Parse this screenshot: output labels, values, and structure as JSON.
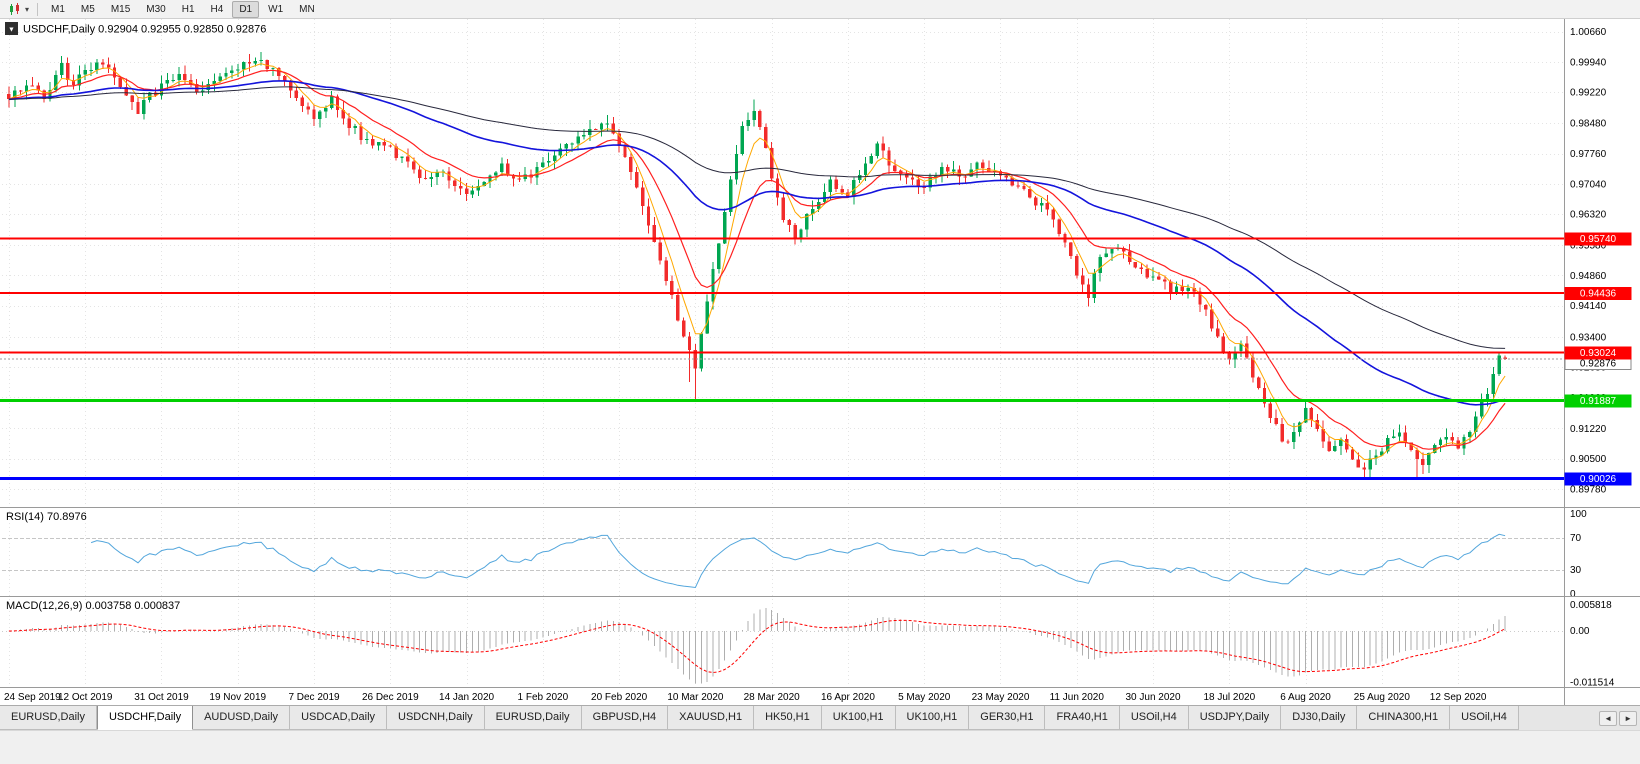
{
  "toolbar": {
    "timeframes": [
      {
        "label": "M1",
        "active": false
      },
      {
        "label": "M5",
        "active": false
      },
      {
        "label": "M15",
        "active": false
      },
      {
        "label": "M30",
        "active": false
      },
      {
        "label": "H1",
        "active": false
      },
      {
        "label": "H4",
        "active": false
      },
      {
        "label": "D1",
        "active": true
      },
      {
        "label": "W1",
        "active": false
      },
      {
        "label": "MN",
        "active": false
      }
    ]
  },
  "chart_header": {
    "symbol": "USDCHF,Daily",
    "open": "0.92904",
    "high": "0.92955",
    "low": "0.92850",
    "close": "0.92876"
  },
  "chart_data": {
    "type": "candlestick",
    "symbol": "USDCHF",
    "timeframe": "Daily",
    "current_ohlc": {
      "open": 0.92904,
      "high": 0.92955,
      "low": 0.9285,
      "close": 0.92876
    },
    "bars": 256,
    "x_tick_step": 13,
    "x_tick_labels": [
      "24 Sep 2019",
      "12 Oct 2019",
      "31 Oct 2019",
      "19 Nov 2019",
      "7 Dec 2019",
      "26 Dec 2019",
      "14 Jan 2020",
      "1 Feb 2020",
      "20 Feb 2020",
      "10 Mar 2020",
      "28 Mar 2020",
      "16 Apr 2020",
      "5 May 2020",
      "23 May 2020",
      "11 Jun 2020",
      "30 Jun 2020",
      "18 Jul 2020",
      "6 Aug 2020",
      "25 Aug 2020",
      "12 Sep 2020"
    ],
    "y_axis": {
      "min": 0.8935,
      "max": 1.0096,
      "tick_labels": [
        "1.00660",
        "0.99940",
        "0.99220",
        "0.98480",
        "0.97760",
        "0.97040",
        "0.96320",
        "0.95580",
        "0.94860",
        "0.94140",
        "0.93400",
        "0.92680",
        "0.91960",
        "0.91220",
        "0.90500",
        "0.89780"
      ]
    },
    "horizontal_lines": [
      {
        "price": 0.9574,
        "label": "0.95740",
        "color": "#FF0000",
        "width": 2,
        "kind": "resistance"
      },
      {
        "price": 0.94436,
        "label": "0.94436",
        "color": "#FF0000",
        "width": 2,
        "kind": "resistance"
      },
      {
        "price": 0.93024,
        "label": "0.93024",
        "color": "#FF0000",
        "width": 2,
        "kind": "resistance"
      },
      {
        "price": 0.91887,
        "label": "0.91887",
        "color": "#00D000",
        "width": 3,
        "kind": "support"
      },
      {
        "price": 0.90026,
        "label": "0.90026",
        "color": "#0000FF",
        "width": 3,
        "kind": "support"
      }
    ],
    "current_price_line": {
      "price": 0.92876,
      "label": "0.92876"
    },
    "candle_colors": {
      "up": "#00A651",
      "down": "#F22B2B"
    },
    "series": {
      "seed": 97,
      "noise": 0.0011,
      "wick": 0.0021,
      "close_anchors": [
        [
          0,
          0.9905
        ],
        [
          3,
          0.9945
        ],
        [
          6,
          0.9912
        ],
        [
          9,
          0.9982
        ],
        [
          11,
          0.9938
        ],
        [
          13,
          0.9968
        ],
        [
          16,
          0.999
        ],
        [
          19,
          0.9932
        ],
        [
          22,
          0.9878
        ],
        [
          24,
          0.9916
        ],
        [
          26,
          0.9932
        ],
        [
          29,
          0.9966
        ],
        [
          32,
          0.9926
        ],
        [
          36,
          0.996
        ],
        [
          40,
          0.9988
        ],
        [
          43,
          1.0
        ],
        [
          46,
          0.9956
        ],
        [
          49,
          0.9906
        ],
        [
          52,
          0.9868
        ],
        [
          55,
          0.9904
        ],
        [
          58,
          0.9846
        ],
        [
          61,
          0.9806
        ],
        [
          65,
          0.9788
        ],
        [
          68,
          0.9748
        ],
        [
          71,
          0.9706
        ],
        [
          74,
          0.973
        ],
        [
          78,
          0.9678
        ],
        [
          81,
          0.971
        ],
        [
          84,
          0.9742
        ],
        [
          87,
          0.9706
        ],
        [
          91,
          0.9748
        ],
        [
          95,
          0.9792
        ],
        [
          99,
          0.9838
        ],
        [
          102,
          0.9856
        ],
        [
          104,
          0.9798
        ],
        [
          107,
          0.9698
        ],
        [
          110,
          0.9565
        ],
        [
          112,
          0.9472
        ],
        [
          114,
          0.9385
        ],
        [
          116,
          0.93
        ],
        [
          117,
          0.9262
        ],
        [
          118,
          0.9345
        ],
        [
          119,
          0.9428
        ],
        [
          121,
          0.9565
        ],
        [
          123,
          0.9705
        ],
        [
          125,
          0.9845
        ],
        [
          127,
          0.988
        ],
        [
          129,
          0.978
        ],
        [
          130,
          0.9706
        ],
        [
          132,
          0.9625
        ],
        [
          134,
          0.9565
        ],
        [
          137,
          0.9652
        ],
        [
          140,
          0.9705
        ],
        [
          143,
          0.9682
        ],
        [
          146,
          0.9748
        ],
        [
          148,
          0.979
        ],
        [
          152,
          0.9722
        ],
        [
          156,
          0.9702
        ],
        [
          159,
          0.9748
        ],
        [
          162,
          0.9722
        ],
        [
          165,
          0.9746
        ],
        [
          169,
          0.9722
        ],
        [
          172,
          0.9702
        ],
        [
          175,
          0.9662
        ],
        [
          178,
          0.9622
        ],
        [
          180,
          0.9562
        ],
        [
          182,
          0.9482
        ],
        [
          184,
          0.9442
        ],
        [
          186,
          0.9522
        ],
        [
          189,
          0.9552
        ],
        [
          192,
          0.9502
        ],
        [
          195,
          0.9482
        ],
        [
          198,
          0.9452
        ],
        [
          201,
          0.9462
        ],
        [
          204,
          0.9402
        ],
        [
          206,
          0.9332
        ],
        [
          208,
          0.9282
        ],
        [
          210,
          0.9322
        ],
        [
          212,
          0.9252
        ],
        [
          214,
          0.9182
        ],
        [
          216,
          0.9122
        ],
        [
          218,
          0.9082
        ],
        [
          220,
          0.9132
        ],
        [
          221,
          0.916
        ],
        [
          223,
          0.9112
        ],
        [
          225,
          0.9072
        ],
        [
          227,
          0.9102
        ],
        [
          229,
          0.9052
        ],
        [
          231,
          0.9022
        ],
        [
          233,
          0.9062
        ],
        [
          235,
          0.9092
        ],
        [
          237,
          0.9106
        ],
        [
          239,
          0.9062
        ],
        [
          241,
          0.9032
        ],
        [
          243,
          0.9082
        ],
        [
          245,
          0.9112
        ],
        [
          247,
          0.9082
        ],
        [
          249,
          0.9122
        ],
        [
          251,
          0.9182
        ],
        [
          253,
          0.9242
        ],
        [
          255,
          0.9288
        ]
      ],
      "overrides": {
        "9": {
          "h": 1.0008
        },
        "43": {
          "h": 1.0018
        },
        "78": {
          "l": 0.9663
        },
        "102": {
          "h": 0.9868
        },
        "116": {
          "l": 0.9232
        },
        "117": {
          "l": 0.9185
        },
        "127": {
          "h": 0.9905
        },
        "184": {
          "l": 0.9412
        },
        "221": {
          "h": 0.9189
        },
        "231": {
          "l": 0.8999
        },
        "240": {
          "l": 0.9004
        },
        "254": {
          "h": 0.93024,
          "c": 0.9295
        },
        "255": {
          "o": 0.92904,
          "h": 0.92955,
          "l": 0.9285,
          "c": 0.92876
        }
      }
    },
    "moving_averages": [
      {
        "period": 5,
        "color": "#FFA800",
        "width": 1
      },
      {
        "period": 13,
        "color": "#FF2020",
        "width": 1.2
      },
      {
        "period": 50,
        "color": "#1414DC",
        "width": 1.6
      },
      {
        "period": 100,
        "color": "#28283C",
        "width": 1
      }
    ],
    "indicators": {
      "rsi": {
        "title": "RSI(14) 70.8976",
        "period": 14,
        "current": 70.8976,
        "color": "#53A6DC",
        "levels": [
          {
            "value": 100,
            "label": "100"
          },
          {
            "value": 70,
            "label": "70"
          },
          {
            "value": 30,
            "label": "30"
          },
          {
            "value": 0,
            "label": "0"
          }
        ]
      },
      "macd": {
        "title": "MACD(12,26,9) 0.003758 0.000837",
        "fast": 12,
        "slow": 26,
        "signal_period": 9,
        "current_macd": 0.003758,
        "current_signal": 0.000837,
        "hist_color": "#AFAFAF",
        "signal_color": "#FF0000",
        "axis_labels": [
          {
            "value": 0.005818,
            "label": "0.005818"
          },
          {
            "value": 0,
            "label": "0.00"
          },
          {
            "value": -0.011514,
            "label": "-0.011514"
          }
        ]
      }
    },
    "grid_color": "#E4E4E4",
    "separator_color": "#9A9A9A"
  },
  "tabs": {
    "items": [
      {
        "label": "EURUSD,Daily",
        "active": false
      },
      {
        "label": "USDCHF,Daily",
        "active": true
      },
      {
        "label": "AUDUSD,Daily",
        "active": false
      },
      {
        "label": "USDCAD,Daily",
        "active": false
      },
      {
        "label": "USDCNH,Daily",
        "active": false
      },
      {
        "label": "EURUSD,Daily",
        "active": false
      },
      {
        "label": "GBPUSD,H4",
        "active": false
      },
      {
        "label": "XAUUSD,H1",
        "active": false
      },
      {
        "label": "HK50,H1",
        "active": false
      },
      {
        "label": "UK100,H1",
        "active": false
      },
      {
        "label": "UK100,H1",
        "active": false
      },
      {
        "label": "GER30,H1",
        "active": false
      },
      {
        "label": "FRA40,H1",
        "active": false
      },
      {
        "label": "USOil,H4",
        "active": false
      },
      {
        "label": "USDJPY,Daily",
        "active": false
      },
      {
        "label": "DJ30,Daily",
        "active": false
      },
      {
        "label": "CHINA300,H1",
        "active": false
      },
      {
        "label": "USOil,H4",
        "active": false
      }
    ]
  },
  "tab_scroll": {
    "left": "◄",
    "right": "►"
  }
}
